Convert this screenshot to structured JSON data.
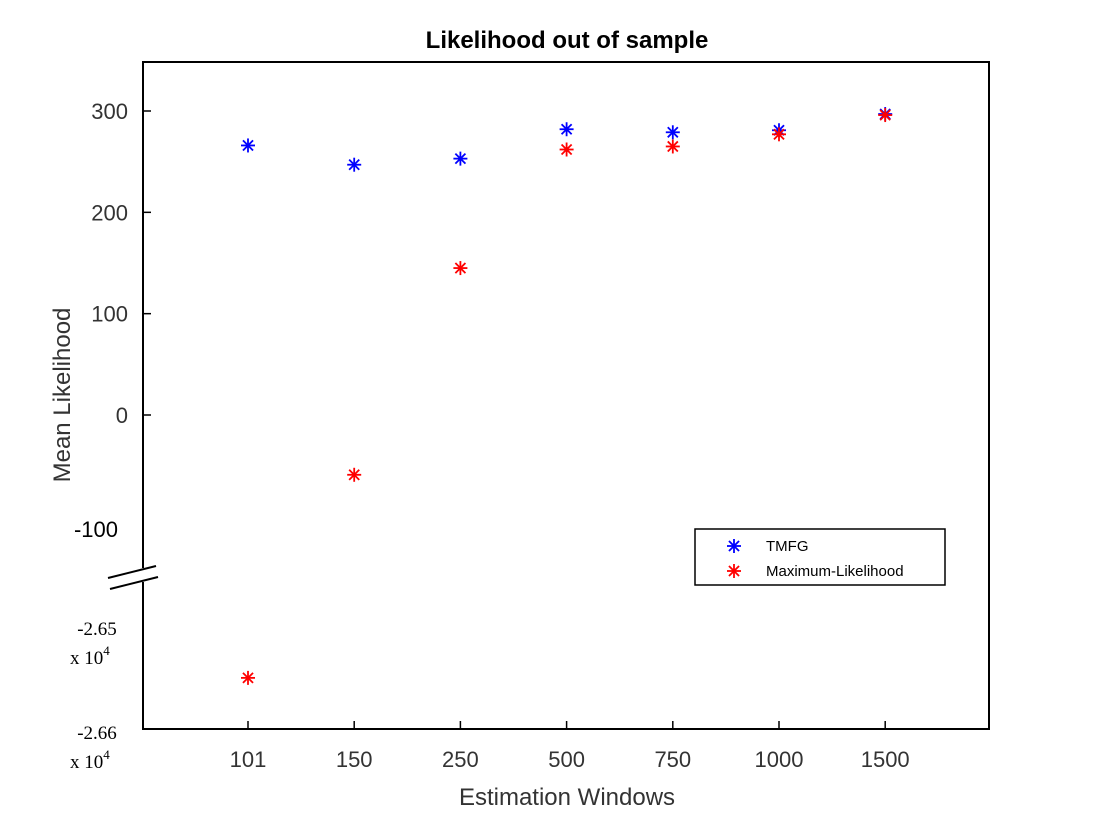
{
  "chart_data": {
    "type": "scatter",
    "title": "Likelihood out of sample",
    "xlabel": "Estimation Windows",
    "ylabel": "Mean Likelihood",
    "categories": [
      "101",
      "150",
      "250",
      "500",
      "750",
      "1000",
      "1500"
    ],
    "y_ticks_upper": [
      "300",
      "200",
      "100",
      "0"
    ],
    "y_tick_break_label": "-100",
    "y_ticks_lower": [
      {
        "value": -26500,
        "label": "-2.65",
        "exp_prefix": "x 10",
        "exp": "4"
      },
      {
        "value": -26600,
        "label": "-2.66",
        "exp_prefix": "x 10",
        "exp": "4"
      }
    ],
    "ylim_upper": [
      -100,
      350
    ],
    "ylim_lower": [
      -26600,
      -26500
    ],
    "series": [
      {
        "name": "TMFG",
        "color": "#0000ff",
        "marker": "*",
        "values": [
          266,
          247,
          253,
          282,
          279,
          281,
          297
        ]
      },
      {
        "name": "Maximum-Likelihood",
        "color": "#ff0000",
        "marker": "*",
        "values": [
          -26547,
          -59,
          145,
          262,
          265,
          277,
          296
        ]
      }
    ],
    "legend_position": "lower-right",
    "grid": false
  }
}
